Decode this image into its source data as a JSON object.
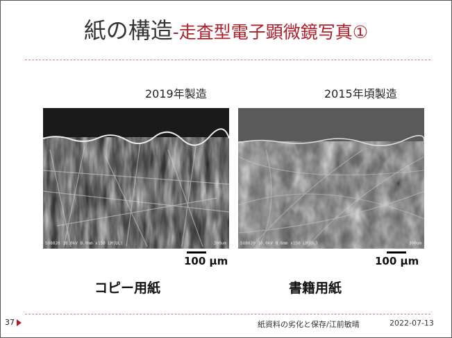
{
  "title": {
    "main": "紙の構造",
    "sub": "-走査型電子顕微鏡写真①"
  },
  "photos": [
    {
      "date_label": "2019年製造",
      "caption": "SU8020 10.0kV 8.0mm x150 LM(UL)",
      "caption_scale": "300um",
      "scale_label": "100 μm",
      "paper_label": "コピー用紙"
    },
    {
      "date_label": "2015年頃製造",
      "caption": "SU8020 10.0kV 8.6mm x150 LM(UL)",
      "caption_scale": "300um",
      "scale_label": "100 μm",
      "paper_label": "書籍用紙"
    }
  ],
  "footer": {
    "page_number": "37",
    "text": "紙資料の劣化と保存/江前敏晴",
    "date": "2022-07-13"
  },
  "colors": {
    "accent": "#b01e2a",
    "rule": "#c98484"
  }
}
